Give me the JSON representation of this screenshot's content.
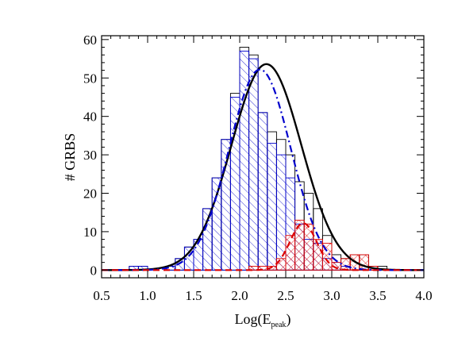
{
  "chart_data": {
    "type": "histogram",
    "xlabel": "Log(E",
    "xlabel_sub": "peak",
    "xlabel_close": ")",
    "ylabel": "# GRBS",
    "xlim": [
      0.5,
      4.0
    ],
    "ylim": [
      -2,
      61
    ],
    "xticks": [
      0.5,
      1.0,
      1.5,
      2.0,
      2.5,
      3.0,
      3.5,
      4.0
    ],
    "xtick_labels": [
      "0.5",
      "1.0",
      "1.5",
      "2.0",
      "2.5",
      "3.0",
      "3.5",
      "4.0"
    ],
    "yticks": [
      0,
      10,
      20,
      30,
      40,
      50,
      60
    ],
    "ytick_labels": [
      "0",
      "10",
      "20",
      "30",
      "40",
      "50",
      "60"
    ],
    "bin_width": 0.1,
    "series": [
      {
        "style": "outline",
        "color": "#000000",
        "bins": [
          [
            0.85,
            1
          ],
          [
            0.95,
            1
          ],
          [
            1.05,
            0
          ],
          [
            1.15,
            0
          ],
          [
            1.25,
            1
          ],
          [
            1.35,
            3
          ],
          [
            1.45,
            6
          ],
          [
            1.55,
            8
          ],
          [
            1.65,
            16
          ],
          [
            1.75,
            24
          ],
          [
            1.85,
            34
          ],
          [
            1.95,
            46
          ],
          [
            2.05,
            58
          ],
          [
            2.15,
            56
          ],
          [
            2.25,
            41
          ],
          [
            2.35,
            36
          ],
          [
            2.45,
            34
          ],
          [
            2.55,
            30
          ],
          [
            2.65,
            23
          ],
          [
            2.75,
            20
          ],
          [
            2.85,
            16
          ],
          [
            2.95,
            9
          ],
          [
            3.05,
            4
          ],
          [
            3.15,
            3
          ],
          [
            3.25,
            4
          ],
          [
            3.35,
            4
          ],
          [
            3.45,
            1
          ],
          [
            3.55,
            1
          ]
        ]
      },
      {
        "style": "hatch-blue",
        "color": "#0000cc",
        "bins": [
          [
            0.85,
            1
          ],
          [
            0.95,
            1
          ],
          [
            1.05,
            0
          ],
          [
            1.15,
            0
          ],
          [
            1.25,
            1
          ],
          [
            1.35,
            3
          ],
          [
            1.45,
            6
          ],
          [
            1.55,
            8
          ],
          [
            1.65,
            16
          ],
          [
            1.75,
            24
          ],
          [
            1.85,
            34
          ],
          [
            1.95,
            45
          ],
          [
            2.05,
            57
          ],
          [
            2.15,
            55
          ],
          [
            2.25,
            41
          ],
          [
            2.35,
            33
          ],
          [
            2.45,
            30
          ],
          [
            2.55,
            24
          ],
          [
            2.65,
            12
          ],
          [
            2.75,
            8
          ],
          [
            2.85,
            7
          ],
          [
            2.95,
            3
          ],
          [
            3.05,
            2
          ],
          [
            3.15,
            1
          ]
        ]
      },
      {
        "style": "hatch-red",
        "color": "#dd0000",
        "bins": [
          [
            2.15,
            1
          ],
          [
            2.25,
            1
          ],
          [
            2.35,
            1
          ],
          [
            2.45,
            3
          ],
          [
            2.55,
            9
          ],
          [
            2.65,
            13
          ],
          [
            2.75,
            12
          ],
          [
            2.85,
            8
          ],
          [
            2.95,
            7
          ],
          [
            3.05,
            2
          ],
          [
            3.15,
            3
          ],
          [
            3.25,
            4
          ],
          [
            3.35,
            4
          ],
          [
            3.45,
            1
          ]
        ]
      }
    ],
    "curves": [
      {
        "style": "solid",
        "color": "#000000",
        "amplitude": 53.6,
        "mu": 2.29,
        "sigma": 0.38
      },
      {
        "style": "dashdot",
        "color": "#0000cc",
        "amplitude": 52.2,
        "mu": 2.22,
        "sigma": 0.335
      },
      {
        "style": "dashed",
        "color": "#dd0000",
        "amplitude": 12.2,
        "mu": 2.69,
        "sigma": 0.145
      }
    ]
  }
}
